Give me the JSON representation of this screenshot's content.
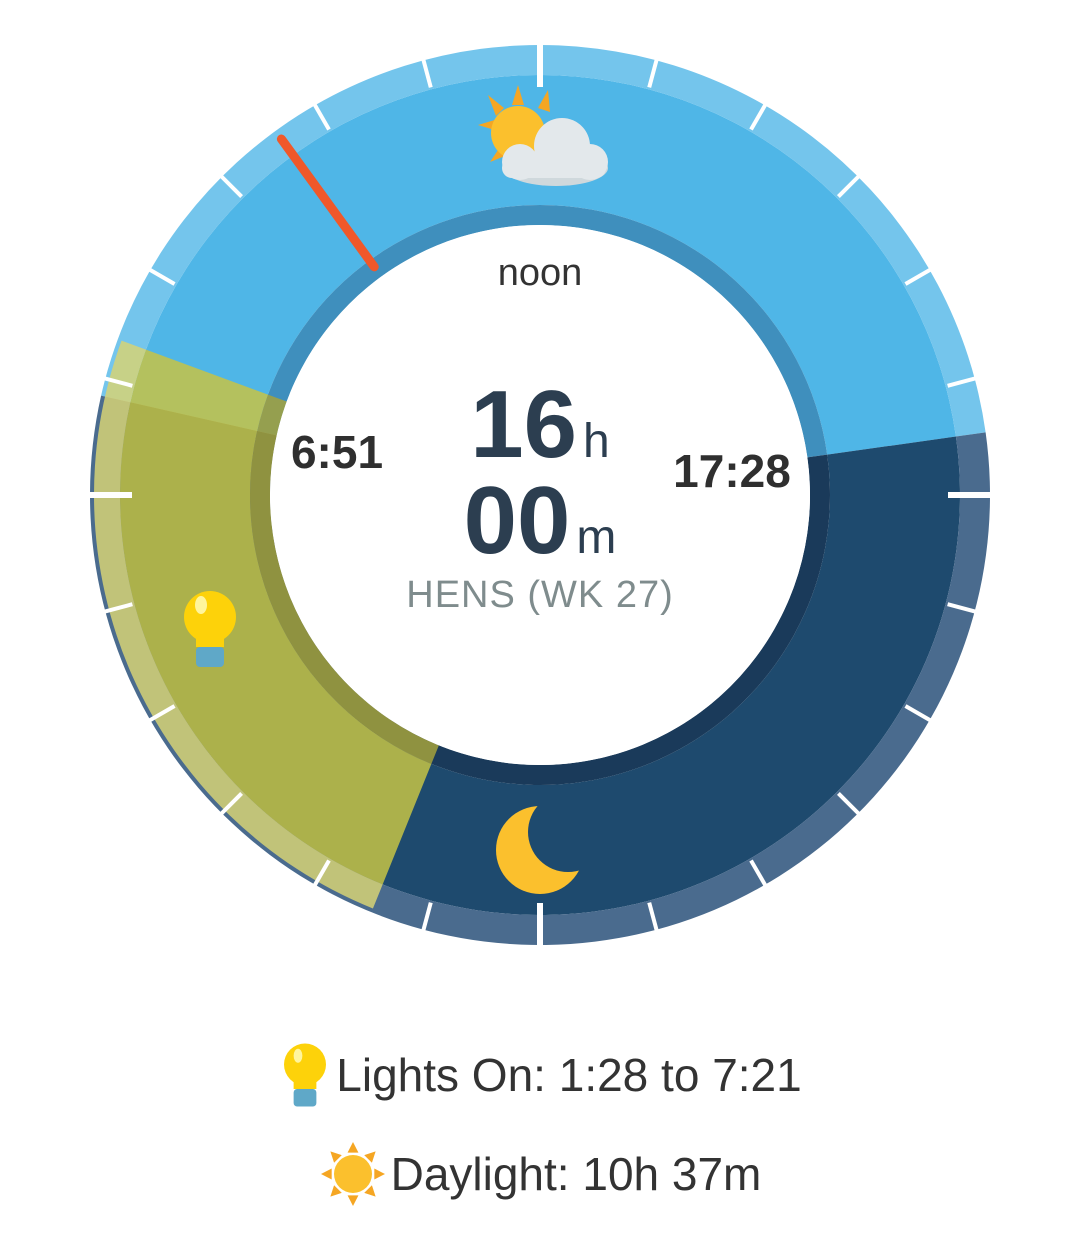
{
  "dial": {
    "noon_label": "noon",
    "sunrise": "6:51",
    "sunset": "17:28",
    "lights_start": "1:28",
    "lights_end": "7:21",
    "current_time": "9:36",
    "center_hours": "16",
    "center_hours_unit": "h",
    "center_minutes": "00",
    "center_minutes_unit": "m",
    "subtitle": "HENS (WK 27)",
    "icons": [
      "sun-behind-cloud-icon",
      "lightbulb-icon",
      "crescent-moon-icon"
    ],
    "colors": {
      "day": "#4fb6e7",
      "day_rim": "#74c5ec",
      "day_inner": "#3f8fbd",
      "night": "#1e4a6e",
      "night_rim": "#4a6b8e",
      "night_inner": "#1a3a5a",
      "lights": "#c5c345",
      "hand": "#f0582a"
    }
  },
  "summary": {
    "lights_text": "Lights On: 1:28 to 7:21",
    "daylight_text": "Daylight: 10h 37m"
  }
}
